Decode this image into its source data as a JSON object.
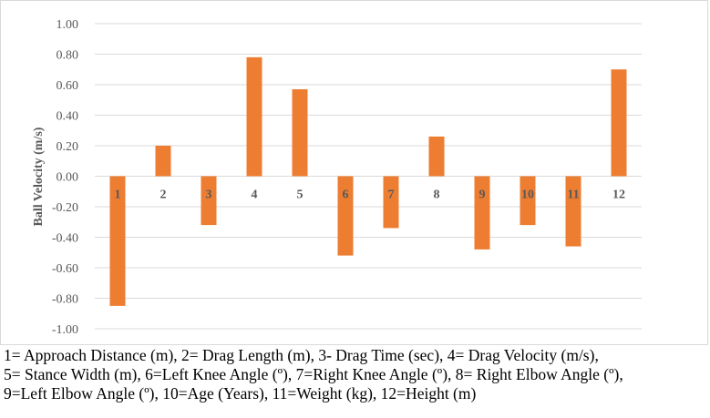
{
  "chart_data": {
    "type": "bar",
    "categories": [
      "1",
      "2",
      "3",
      "4",
      "5",
      "6",
      "7",
      "8",
      "9",
      "10",
      "11",
      "12"
    ],
    "values": [
      -0.85,
      0.2,
      -0.32,
      0.78,
      0.57,
      -0.52,
      -0.34,
      0.26,
      -0.48,
      -0.32,
      -0.46,
      0.7
    ],
    "ylabel": "Ball Velocity (m/s)",
    "xlabel": "",
    "ylim": [
      -1.0,
      1.0
    ],
    "yticks": [
      "1.00",
      "0.80",
      "0.60",
      "0.40",
      "0.20",
      "0.00",
      "-0.20",
      "-0.40",
      "-0.60",
      "-0.80",
      "-1.00"
    ],
    "grid": true,
    "bar_color": "#ED7D31"
  },
  "caption": {
    "line1": "1= Approach Distance (m), 2= Drag Length (m), 3- Drag Time (sec), 4= Drag Velocity (m/s),",
    "line2": "5= Stance Width (m), 6=Left Knee Angle (º), 7=Right Knee Angle (º), 8= Right Elbow Angle (º),",
    "line3": "9=Left Elbow Angle (º), 10=Age (Years), 11=Weight (kg), 12=Height (m)"
  }
}
